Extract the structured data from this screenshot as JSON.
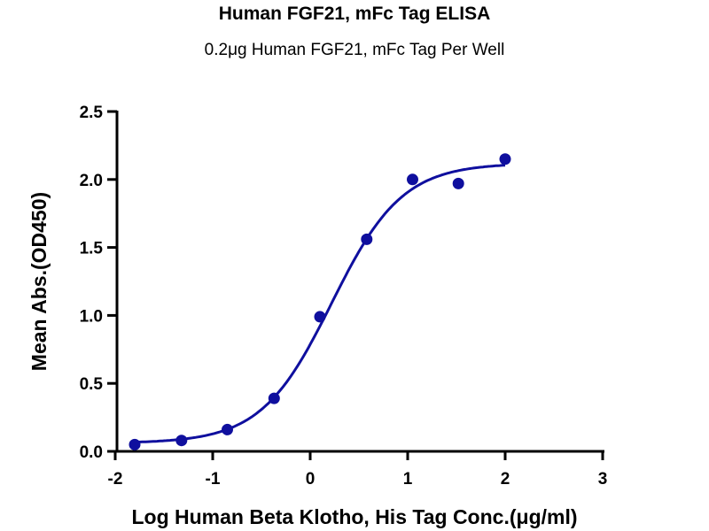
{
  "chart_data": {
    "type": "scatter",
    "title": "Human FGF21, mFc Tag ELISA",
    "subtitle": "0.2μg Human FGF21, mFc Tag Per Well",
    "xlabel": "Log Human Beta Klotho, His Tag Conc.(μg/ml)",
    "ylabel": "Mean Abs.(OD450)",
    "xlim": [
      -2,
      3
    ],
    "ylim": [
      0,
      2.5
    ],
    "xticks": [
      "-2",
      "-1",
      "0",
      "1",
      "2",
      "3"
    ],
    "yticks": [
      "0.0",
      "0.5",
      "1.0",
      "1.5",
      "2.0",
      "2.5"
    ],
    "grid": false,
    "color": "#0f0f9e",
    "series": [
      {
        "name": "data",
        "x": [
          -1.8,
          -1.32,
          -0.85,
          -0.37,
          0.1,
          0.58,
          1.05,
          1.52,
          2.0
        ],
        "y": [
          0.05,
          0.08,
          0.16,
          0.39,
          0.99,
          1.56,
          2.0,
          1.97,
          2.15
        ]
      }
    ],
    "fit": {
      "model": "4PL",
      "bottom": 0.06,
      "top": 2.12,
      "logEC50": 0.22,
      "hill": 1.2,
      "x_range": [
        -1.8,
        2.0
      ]
    }
  }
}
